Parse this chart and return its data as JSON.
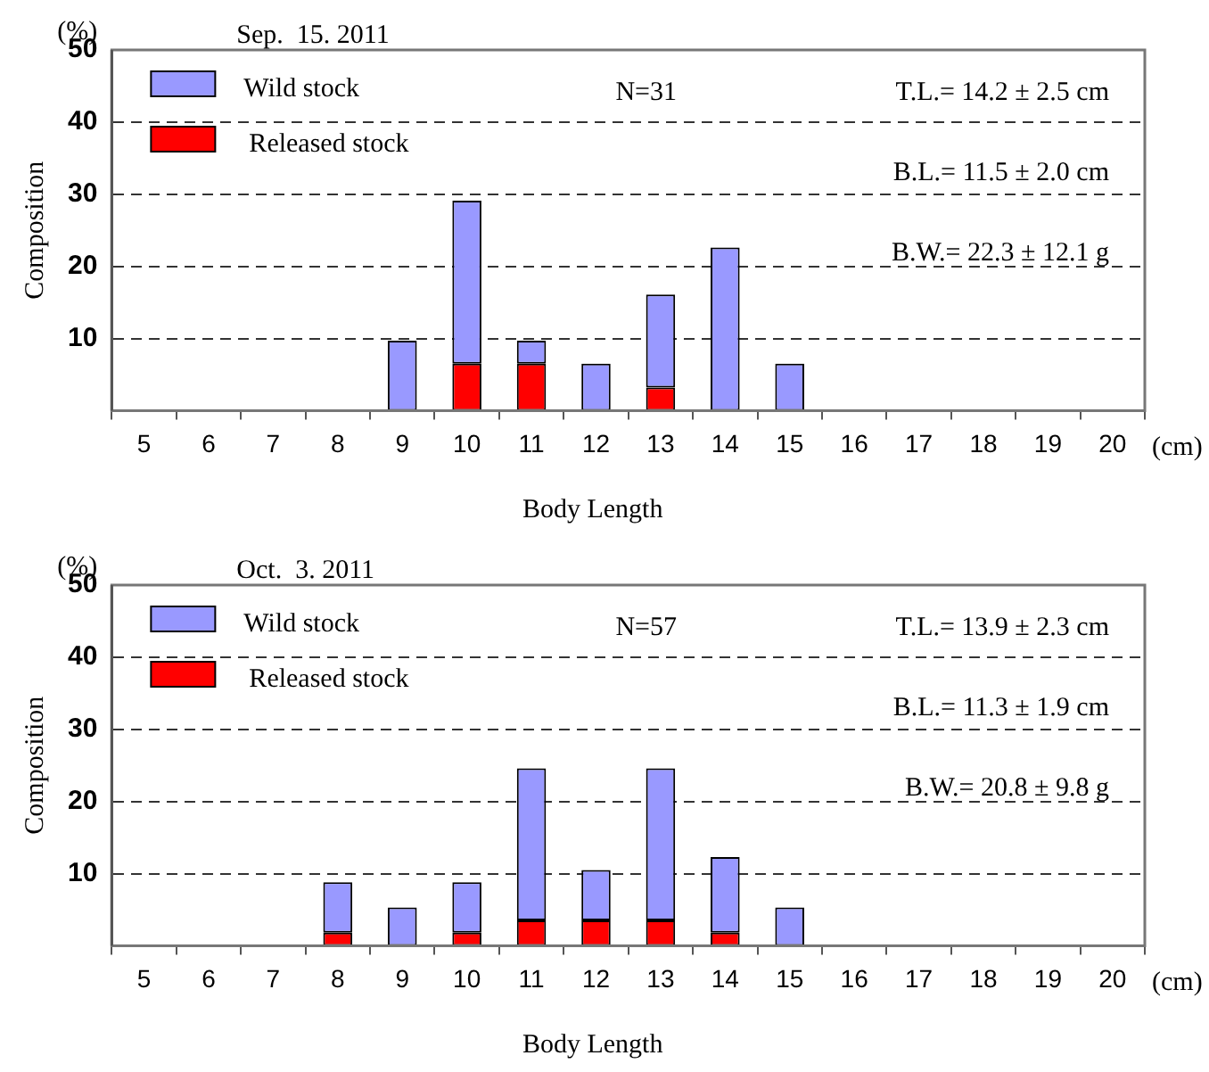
{
  "chart_data": [
    {
      "type": "bar",
      "title": "Sep.  15. 2011",
      "xlabel": "Body Length",
      "ylabel": "Composition",
      "stacked": true,
      "legend": "top left",
      "grid": "y",
      "line_style": "dashed",
      "categories": [
        "5",
        "6",
        "7",
        "8",
        "9",
        "10",
        "11",
        "12",
        "13",
        "14",
        "15",
        "16",
        "17",
        "18",
        "19",
        "20"
      ],
      "series": [
        {
          "name": "Released stock",
          "color": "#ff0000",
          "values": [
            null,
            null,
            null,
            null,
            null,
            6.5,
            6.5,
            null,
            3.2,
            null,
            null,
            null,
            null,
            null,
            null,
            null
          ]
        },
        {
          "name": "Wild stock",
          "color": "#9999ff",
          "values": [
            null,
            null,
            null,
            null,
            9.7,
            22.6,
            3.2,
            6.5,
            12.9,
            22.6,
            6.5,
            null,
            null,
            null,
            null,
            null
          ]
        }
      ],
      "ylim": [
        0,
        50
      ],
      "yticks": [
        10,
        20,
        30,
        40,
        50
      ],
      "annotations": [
        "(%)",
        "(cm)",
        "N=31",
        "T.L.= 14.2 ± 2.5 cm",
        "B.L.= 11.5 ± 2.0 cm",
        "B.W.= 22.3 ± 12.1 g"
      ]
    },
    {
      "type": "bar",
      "title": "Oct.  3. 2011",
      "xlabel": "Body Length",
      "ylabel": "Composition",
      "stacked": true,
      "legend": "top left",
      "grid": "y",
      "line_style": "dashed",
      "categories": [
        "5",
        "6",
        "7",
        "8",
        "9",
        "10",
        "11",
        "12",
        "13",
        "14",
        "15",
        "16",
        "17",
        "18",
        "19",
        "20"
      ],
      "series": [
        {
          "name": "Released stock",
          "color": "#ff0000",
          "values": [
            null,
            null,
            null,
            1.8,
            null,
            1.8,
            3.5,
            3.5,
            3.5,
            1.8,
            null,
            null,
            null,
            null,
            null,
            null
          ]
        },
        {
          "name": "Wild stock",
          "color": "#9999ff",
          "values": [
            null,
            null,
            null,
            7.0,
            5.3,
            7.0,
            21.1,
            7.0,
            21.1,
            10.5,
            5.3,
            null,
            null,
            null,
            null,
            null
          ]
        }
      ],
      "ylim": [
        0,
        50
      ],
      "yticks": [
        10,
        20,
        30,
        40,
        50
      ],
      "annotations": [
        "(%)",
        "(cm)",
        "N=57",
        "T.L.= 13.9 ± 2.3 cm",
        "B.L.= 11.3 ± 1.9 cm",
        "B.W.= 20.8 ± 9.8 g"
      ]
    }
  ]
}
